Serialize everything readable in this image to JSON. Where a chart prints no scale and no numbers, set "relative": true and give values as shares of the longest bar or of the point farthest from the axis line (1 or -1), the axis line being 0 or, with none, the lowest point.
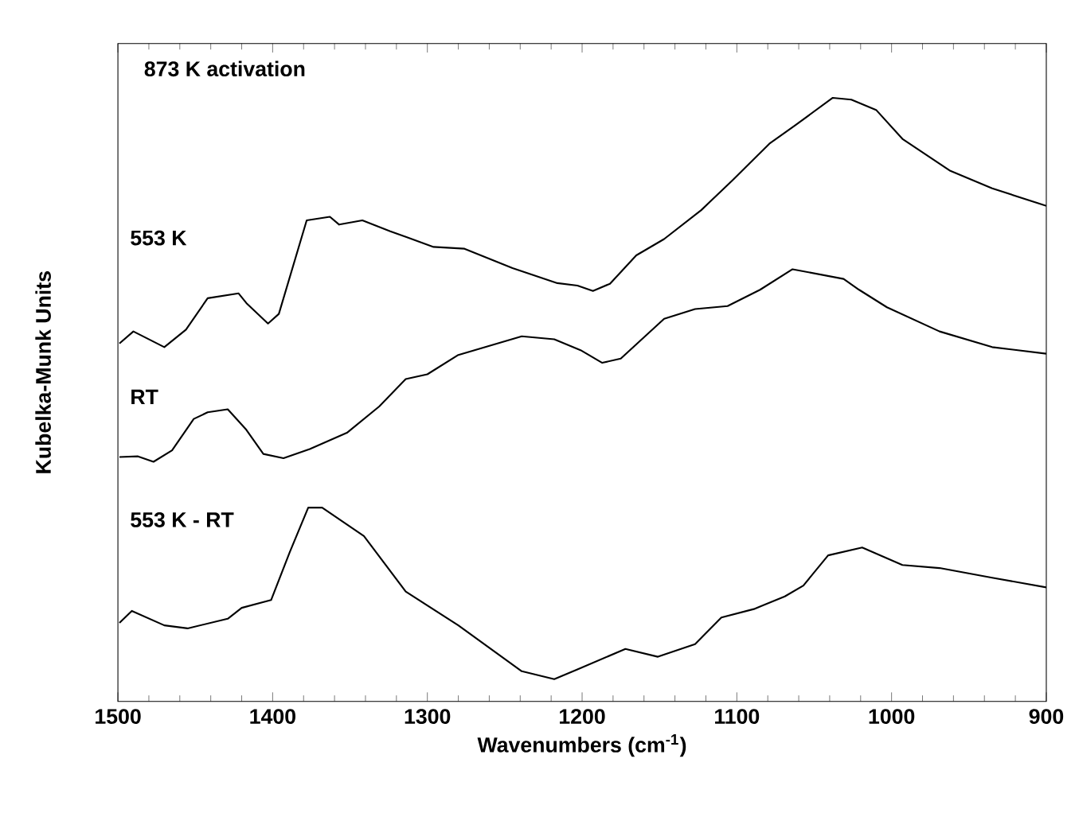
{
  "chart_data": {
    "type": "line",
    "relative": true,
    "xlabel": "Wavenumbers (cm$^{-1}$)",
    "ylabel": "Kubelka-Munk Units",
    "annotations": [
      "873 K activation"
    ],
    "xlim": [
      1500,
      900
    ],
    "xticks": [
      1500,
      1400,
      1300,
      1200,
      1100,
      1000,
      900
    ],
    "marker": "none",
    "line_style": "solid",
    "series": [
      {
        "name": "553 K",
        "color": "#000000",
        "x": [
          1499,
          1490,
          1470,
          1456,
          1442,
          1422,
          1417,
          1403,
          1396,
          1378,
          1363,
          1357,
          1342,
          1324,
          1296,
          1276,
          1245,
          1216,
          1203,
          1193,
          1182,
          1165,
          1147,
          1123,
          1103,
          1079,
          1062,
          1038,
          1026,
          1010,
          993,
          962,
          935,
          900
        ],
        "values": [
          0.593,
          0.613,
          0.587,
          0.616,
          0.668,
          0.676,
          0.66,
          0.626,
          0.642,
          0.797,
          0.803,
          0.79,
          0.797,
          0.779,
          0.753,
          0.75,
          0.718,
          0.693,
          0.689,
          0.68,
          0.692,
          0.739,
          0.766,
          0.814,
          0.863,
          0.924,
          0.955,
          1.0,
          0.997,
          0.98,
          0.932,
          0.879,
          0.85,
          0.821
        ]
      },
      {
        "name": "RT",
        "color": "#000000",
        "x": [
          1499,
          1487,
          1477,
          1465,
          1451,
          1442,
          1429,
          1417,
          1406,
          1393,
          1376,
          1352,
          1331,
          1314,
          1300,
          1280,
          1239,
          1218,
          1201,
          1187,
          1175,
          1147,
          1127,
          1106,
          1085,
          1064,
          1031,
          1021,
          1003,
          969,
          935,
          900
        ],
        "values": [
          0.405,
          0.406,
          0.397,
          0.416,
          0.468,
          0.479,
          0.484,
          0.45,
          0.41,
          0.403,
          0.418,
          0.445,
          0.489,
          0.534,
          0.542,
          0.574,
          0.605,
          0.6,
          0.582,
          0.561,
          0.568,
          0.634,
          0.65,
          0.655,
          0.682,
          0.716,
          0.7,
          0.682,
          0.653,
          0.613,
          0.587,
          0.576
        ]
      },
      {
        "name": "553 K - RT",
        "color": "#000000",
        "x": [
          1499,
          1491,
          1470,
          1455,
          1429,
          1420,
          1401,
          1389,
          1377,
          1368,
          1341,
          1314,
          1280,
          1239,
          1218,
          1203,
          1172,
          1151,
          1127,
          1110,
          1089,
          1069,
          1057,
          1041,
          1019,
          993,
          969,
          935,
          900
        ],
        "values": [
          0.13,
          0.15,
          0.126,
          0.121,
          0.137,
          0.155,
          0.168,
          0.247,
          0.321,
          0.321,
          0.274,
          0.182,
          0.126,
          0.05,
          0.037,
          0.053,
          0.087,
          0.074,
          0.095,
          0.139,
          0.153,
          0.174,
          0.192,
          0.242,
          0.255,
          0.226,
          0.221,
          0.205,
          0.189
        ]
      }
    ]
  }
}
